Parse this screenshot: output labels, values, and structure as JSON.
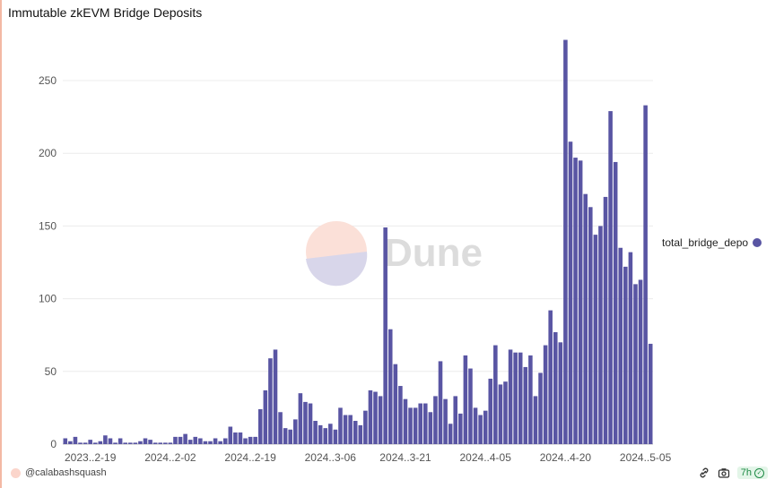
{
  "chart_data": {
    "type": "bar",
    "title": "Immutable zkEVM Bridge Deposits",
    "xlabel": "",
    "ylabel": "",
    "ylim": [
      0,
      280
    ],
    "yticks": [
      0,
      50,
      100,
      150,
      200,
      250
    ],
    "xtick_labels": [
      "2023..2-19",
      "2024..2-02",
      "2024..2-19",
      "2024..3-06",
      "2024..3-21",
      "2024..4-05",
      "2024..4-20",
      "2024..5-05"
    ],
    "xtick_indices": [
      5,
      21,
      37,
      53,
      68,
      84,
      100,
      116
    ],
    "series": [
      {
        "name": "total_bridge_depo",
        "color": "#5955a3",
        "values": [
          4,
          2,
          5,
          1,
          1,
          3,
          1,
          2,
          6,
          4,
          1,
          4,
          1,
          1,
          1,
          2,
          4,
          3,
          1,
          1,
          1,
          1,
          5,
          5,
          7,
          3,
          5,
          4,
          2,
          2,
          4,
          2,
          4,
          12,
          8,
          8,
          4,
          5,
          5,
          24,
          37,
          59,
          65,
          22,
          11,
          10,
          17,
          35,
          29,
          28,
          16,
          13,
          11,
          14,
          10,
          25,
          20,
          20,
          16,
          13,
          23,
          37,
          36,
          33,
          149,
          79,
          55,
          40,
          31,
          25,
          25,
          28,
          28,
          22,
          33,
          57,
          31,
          14,
          33,
          21,
          61,
          52,
          25,
          20,
          23,
          45,
          68,
          41,
          43,
          65,
          63,
          63,
          53,
          61,
          33,
          49,
          68,
          92,
          77,
          70,
          278,
          208,
          197,
          195,
          172,
          163,
          144,
          150,
          170,
          229,
          194,
          135,
          122,
          132,
          110,
          113,
          233,
          69
        ]
      }
    ]
  },
  "legend": {
    "label": "total_bridge_depo",
    "color": "#5955a3"
  },
  "watermark": {
    "text": "Dune"
  },
  "footer": {
    "user": "@calabashsquash",
    "age": "7h",
    "link_icon": "link-icon",
    "camera_icon": "camera-icon",
    "check_icon": "check-circle-icon"
  }
}
